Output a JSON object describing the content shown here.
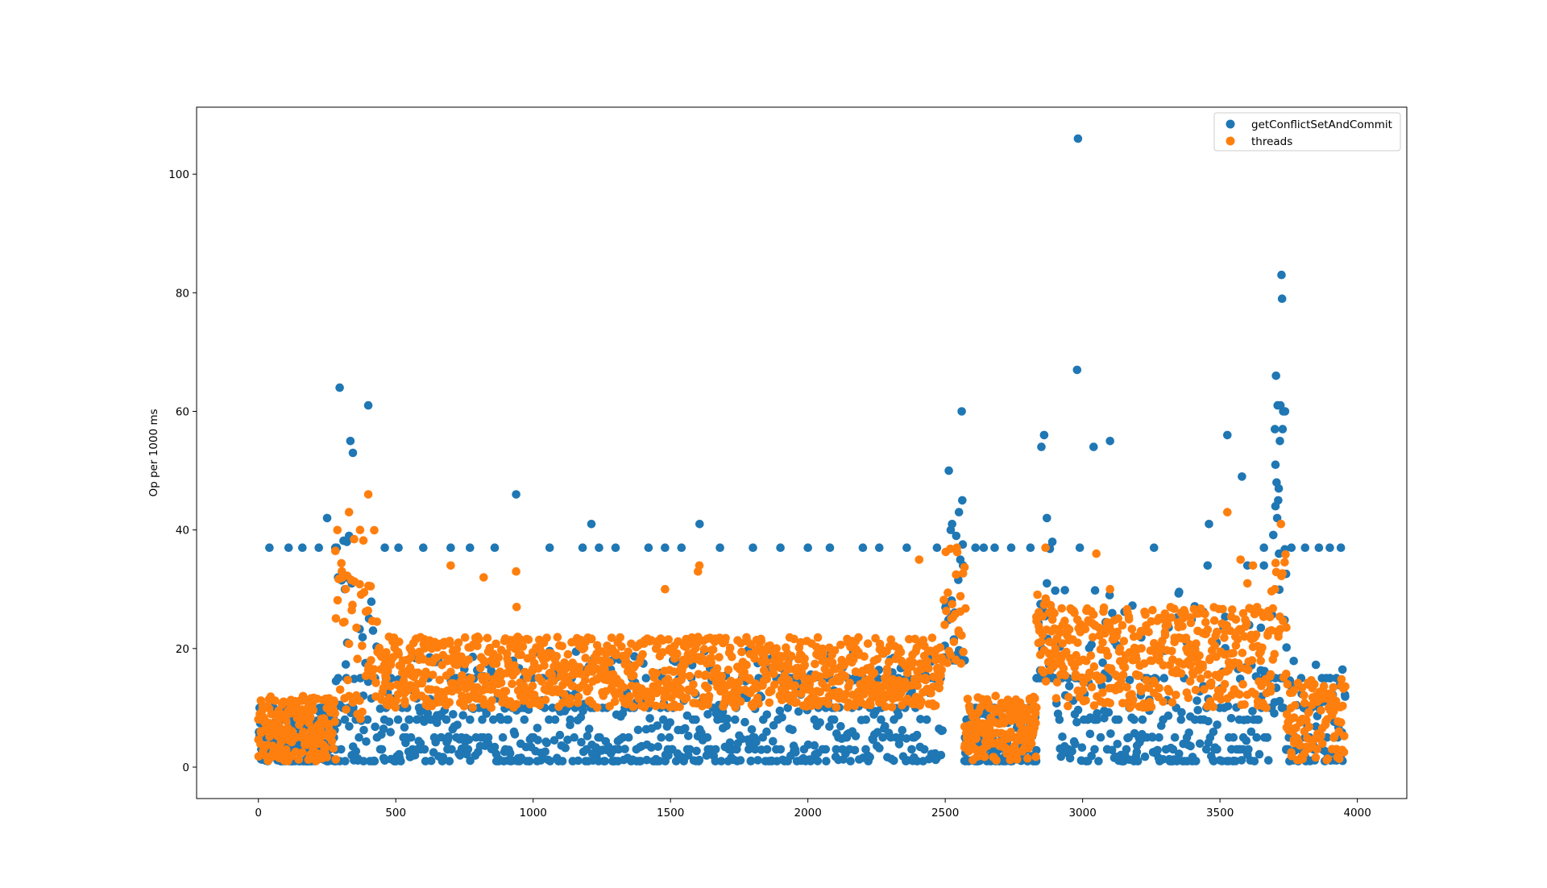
{
  "chart_data": {
    "type": "scatter",
    "title": "",
    "xlabel": "",
    "ylabel": "Op per 1000 ms",
    "xlim": [
      -225,
      4180
    ],
    "ylim": [
      -5.3,
      111.3
    ],
    "xticks": [
      0,
      500,
      1000,
      1500,
      2000,
      2500,
      3000,
      3500,
      4000
    ],
    "yticks": [
      0,
      20,
      40,
      60,
      80,
      100
    ],
    "grid": false,
    "legend_position": "top-right",
    "series": [
      {
        "name": "getConflictSetAndCommit",
        "color": "#1f77b4",
        "notable_points": [
          [
            296,
            64
          ],
          [
            335,
            55
          ],
          [
            344,
            53
          ],
          [
            400,
            61
          ],
          [
            938,
            46
          ],
          [
            1212,
            41
          ],
          [
            1606,
            41
          ],
          [
            2513,
            50
          ],
          [
            2560,
            60
          ],
          [
            2562,
            45
          ],
          [
            2850,
            54
          ],
          [
            2860,
            56
          ],
          [
            2870,
            42
          ],
          [
            2983,
            106
          ],
          [
            2980,
            67
          ],
          [
            3040,
            54
          ],
          [
            3100,
            55
          ],
          [
            3527,
            56
          ],
          [
            3580,
            49
          ],
          [
            3460,
            41
          ],
          [
            3704,
            66
          ],
          [
            3710,
            61
          ],
          [
            3720,
            61
          ],
          [
            3724,
            83
          ],
          [
            3726,
            79
          ],
          [
            3730,
            60
          ],
          [
            3737,
            60
          ],
          [
            3700,
            57
          ],
          [
            3718,
            55
          ],
          [
            3728,
            57
          ],
          [
            3702,
            51
          ],
          [
            3706,
            48
          ],
          [
            3714,
            47
          ],
          [
            3712,
            45
          ],
          [
            3702,
            44
          ],
          [
            3708,
            42
          ],
          [
            3715,
            36
          ],
          [
            250,
            42
          ],
          [
            285,
            37
          ],
          [
            290,
            32
          ],
          [
            322,
            38
          ],
          [
            330,
            39
          ],
          [
            315,
            30
          ],
          [
            340,
            31
          ],
          [
            2520,
            40
          ],
          [
            2525,
            41
          ],
          [
            2540,
            39
          ],
          [
            2550,
            43
          ],
          [
            2555,
            35
          ],
          [
            2565,
            34
          ],
          [
            2880,
            37
          ],
          [
            2890,
            38
          ],
          [
            2870,
            31
          ],
          [
            3455,
            34
          ],
          [
            3600,
            34
          ],
          [
            3660,
            34
          ]
        ],
        "upper_band_y": 37,
        "upper_band_x": [
          [
            0,
            280
          ],
          [
            440,
            2480
          ],
          [
            2600,
            2860
          ],
          [
            3750,
            3950
          ]
        ],
        "upper_band_x_points": [
          40,
          110,
          160,
          220,
          280,
          460,
          510,
          600,
          700,
          770,
          860,
          1060,
          1180,
          1240,
          1300,
          1420,
          1480,
          1540,
          1680,
          1800,
          1900,
          2000,
          2080,
          2200,
          2260,
          2360,
          2470,
          2610,
          2640,
          2680,
          2740,
          2810,
          2990,
          3260,
          3660,
          3760,
          3810,
          3860,
          3900,
          3940
        ],
        "level_bands": [
          1,
          3,
          5,
          8,
          10,
          15
        ],
        "segments": [
          {
            "x": [
              0,
              280
            ],
            "ymin": 1,
            "ymax": 10,
            "density": 0.9
          },
          {
            "x": [
              280,
              430
            ],
            "ymin": 1,
            "ymax": 39,
            "density": 0.5
          },
          {
            "x": [
              440,
              2490
            ],
            "ymin": 1,
            "ymax": 20,
            "density": 0.6
          },
          {
            "x": [
              2490,
              2570
            ],
            "ymin": 18,
            "ymax": 40,
            "density": 0.5
          },
          {
            "x": [
              2570,
              2830
            ],
            "ymin": 1,
            "ymax": 10,
            "density": 0.9
          },
          {
            "x": [
              2830,
              2900
            ],
            "ymin": 15,
            "ymax": 37,
            "density": 0.5
          },
          {
            "x": [
              2900,
              3680
            ],
            "ymin": 1,
            "ymax": 30,
            "density": 0.5
          },
          {
            "x": [
              3680,
              3740
            ],
            "ymin": 9,
            "ymax": 40,
            "density": 0.5
          },
          {
            "x": [
              3740,
              3950
            ],
            "ymin": 1,
            "ymax": 20,
            "density": 0.6
          }
        ]
      },
      {
        "name": "threads",
        "color": "#ff7f0e",
        "notable_points": [
          [
            400,
            46
          ],
          [
            330,
            43
          ],
          [
            370,
            40
          ],
          [
            3527,
            43
          ],
          [
            3722,
            41
          ],
          [
            2542,
            37
          ],
          [
            2865,
            37
          ],
          [
            3050,
            36
          ],
          [
            2405,
            35
          ],
          [
            3575,
            35
          ],
          [
            3620,
            34
          ],
          [
            1605,
            34
          ],
          [
            1600,
            33
          ],
          [
            938,
            33
          ],
          [
            700,
            34
          ],
          [
            820,
            32
          ],
          [
            940,
            27
          ],
          [
            1480,
            30
          ],
          [
            3100,
            30
          ],
          [
            3600,
            31
          ],
          [
            3700,
            30
          ]
        ],
        "segments": [
          {
            "x": [
              0,
              280
            ],
            "ymin": 1,
            "ymax": 12,
            "density": 0.9
          },
          {
            "x": [
              280,
              430
            ],
            "ymin": 8,
            "ymax": 40,
            "density": 0.6
          },
          {
            "x": [
              440,
              2490
            ],
            "ymin": 10,
            "ymax": 22,
            "density": 0.8
          },
          {
            "x": [
              2490,
              2570
            ],
            "ymin": 17,
            "ymax": 37,
            "density": 0.6
          },
          {
            "x": [
              2570,
              2830
            ],
            "ymin": 1,
            "ymax": 12,
            "density": 0.9
          },
          {
            "x": [
              2830,
              2900
            ],
            "ymin": 14,
            "ymax": 30,
            "density": 0.7
          },
          {
            "x": [
              2900,
              3680
            ],
            "ymin": 10,
            "ymax": 27,
            "density": 0.7
          },
          {
            "x": [
              3680,
              3740
            ],
            "ymin": 15,
            "ymax": 36,
            "density": 0.6
          },
          {
            "x": [
              3740,
              3950
            ],
            "ymin": 1,
            "ymax": 15,
            "density": 0.8
          }
        ]
      }
    ]
  }
}
